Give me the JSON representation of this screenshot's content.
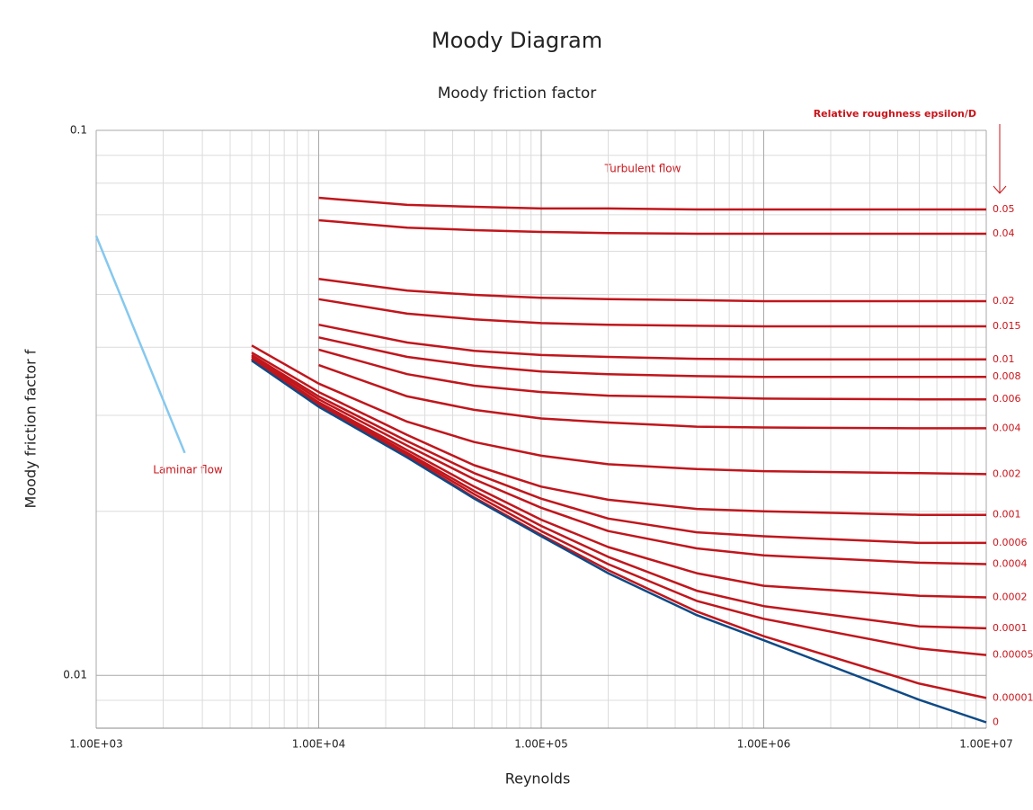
{
  "chart_data": {
    "type": "line",
    "title": "Moody Diagram",
    "subtitle": "Moody friction factor",
    "x_label": "Reynolds",
    "y_label": "Moody friction factor f",
    "annotations": {
      "turbulent": "Turbulent flow",
      "laminar": "Laminar flow",
      "roughness": "Relative roughness epsilon/D"
    },
    "xscale": "log",
    "yscale": "log",
    "grid": true,
    "minor_grid": true,
    "xlim": [
      1000,
      10000000
    ],
    "ylim": [
      0.008,
      0.1
    ],
    "xticks": [
      {
        "value": 1000,
        "label": "1.00E+03"
      },
      {
        "value": 10000,
        "label": "1.00E+04"
      },
      {
        "value": 100000,
        "label": "1.00E+05"
      },
      {
        "value": 1000000,
        "label": "1.00E+06"
      },
      {
        "value": 10000000,
        "label": "1.00E+07"
      }
    ],
    "yticks": [
      0.01,
      0.1
    ],
    "x": [
      5000,
      10000,
      25000,
      50000,
      100000,
      200000,
      500000,
      1000000,
      5000000,
      10000000
    ],
    "series": [
      {
        "name": "0.05",
        "color": "#c0161c",
        "values": [
          null,
          0.0752,
          0.073,
          0.0724,
          0.0719,
          0.0719,
          0.0716,
          0.0716,
          0.0716,
          0.0716
        ]
      },
      {
        "name": "0.04",
        "color": "#c0161c",
        "values": [
          null,
          0.0684,
          0.0663,
          0.0656,
          0.0651,
          0.0648,
          0.0646,
          0.0646,
          0.0646,
          0.0646
        ]
      },
      {
        "name": "0.02",
        "color": "#c0161c",
        "values": [
          null,
          0.0534,
          0.0508,
          0.0499,
          0.0493,
          0.049,
          0.0488,
          0.0486,
          0.0486,
          0.0486
        ]
      },
      {
        "name": "0.015",
        "color": "#c0161c",
        "values": [
          null,
          0.049,
          0.0461,
          0.045,
          0.0443,
          0.044,
          0.0438,
          0.0437,
          0.0437,
          0.0437
        ]
      },
      {
        "name": "0.01",
        "color": "#c0161c",
        "values": [
          null,
          0.044,
          0.0408,
          0.0394,
          0.0387,
          0.0384,
          0.0381,
          0.038,
          0.038,
          0.038
        ]
      },
      {
        "name": "0.008",
        "color": "#c0161c",
        "values": [
          null,
          0.0417,
          0.0384,
          0.037,
          0.0361,
          0.0357,
          0.0354,
          0.0353,
          0.0353,
          0.0353
        ]
      },
      {
        "name": "0.006",
        "color": "#c0161c",
        "values": [
          null,
          0.0396,
          0.0357,
          0.034,
          0.0331,
          0.0326,
          0.0324,
          0.0322,
          0.0321,
          0.0321
        ]
      },
      {
        "name": "0.004",
        "color": "#c0161c",
        "values": [
          null,
          0.0371,
          0.0325,
          0.0307,
          0.0296,
          0.0291,
          0.0286,
          0.0285,
          0.0284,
          0.0284
        ]
      },
      {
        "name": "0.002",
        "color": "#c0161c",
        "values": [
          0.0403,
          0.0343,
          0.0292,
          0.0268,
          0.0253,
          0.0244,
          0.0239,
          0.0237,
          0.0235,
          0.0234
        ]
      },
      {
        "name": "0.001",
        "color": "#c0161c",
        "values": [
          0.0391,
          0.0331,
          0.0276,
          0.0243,
          0.0222,
          0.021,
          0.0202,
          0.02,
          0.0197,
          0.0197
        ]
      },
      {
        "name": "0.0006",
        "color": "#c0161c",
        "values": [
          0.0387,
          0.0325,
          0.0269,
          0.0235,
          0.0211,
          0.0194,
          0.0183,
          0.018,
          0.0175,
          0.0175
        ]
      },
      {
        "name": "0.0004",
        "color": "#c0161c",
        "values": [
          0.0385,
          0.0321,
          0.0264,
          0.0229,
          0.0203,
          0.0184,
          0.0171,
          0.0166,
          0.0161,
          0.016
        ]
      },
      {
        "name": "0.0002",
        "color": "#c0161c",
        "values": [
          0.0382,
          0.0317,
          0.0259,
          0.0222,
          0.0193,
          0.0172,
          0.0154,
          0.0146,
          0.014,
          0.0139
        ]
      },
      {
        "name": "0.0001",
        "color": "#c0161c",
        "values": [
          0.0381,
          0.0315,
          0.0256,
          0.0218,
          0.0188,
          0.0165,
          0.0143,
          0.0134,
          0.0123,
          0.0122
        ]
      },
      {
        "name": "0.00005",
        "color": "#c0161c",
        "values": [
          0.0381,
          0.0314,
          0.0254,
          0.0215,
          0.0184,
          0.016,
          0.0137,
          0.0127,
          0.0112,
          0.0109
        ]
      },
      {
        "name": "0.00001",
        "color": "#c0161c",
        "values": [
          0.038,
          0.0313,
          0.0252,
          0.0212,
          0.0181,
          0.0156,
          0.0131,
          0.0118,
          0.00966,
          0.00909
        ]
      },
      {
        "name": "0",
        "color": "#0e4a86",
        "values": [
          0.0378,
          0.0311,
          0.0251,
          0.0211,
          0.018,
          0.0154,
          0.0129,
          0.0116,
          0.00902,
          0.0082
        ]
      },
      {
        "color": "#86c8ee",
        "x": [
          1000,
          2500
        ],
        "values": [
          0.064,
          0.0256
        ]
      }
    ]
  }
}
